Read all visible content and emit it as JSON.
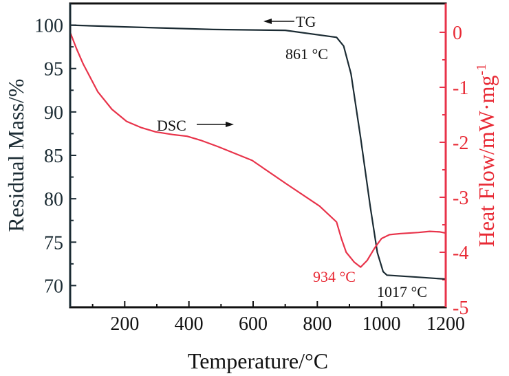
{
  "chart_data": {
    "type": "line",
    "title": "",
    "xlabel": "Temperature/°C",
    "ylabel": "Residual Mass/%",
    "y2label_main": "Heat Flow/mW·mg",
    "y2label_sup": "-1",
    "xlim": [
      30,
      1200
    ],
    "ylim": [
      67.5,
      102.5
    ],
    "y2lim": [
      -5,
      0.525
    ],
    "xticks": [
      200,
      400,
      600,
      800,
      1000,
      1200
    ],
    "yticks": [
      70,
      75,
      80,
      85,
      90,
      95,
      100
    ],
    "y2ticks": [
      0,
      -1,
      -2,
      -3,
      -4,
      -5
    ],
    "grid": false,
    "colors": {
      "tg": "#1b2b33",
      "dsc": "#e8334a",
      "left_axis": "#1b2b33",
      "right_axis": "#e8334a",
      "red_text": "#e82a35"
    },
    "series": [
      {
        "name": "TG",
        "axis": "left",
        "x": [
          33,
          200,
          475,
          700,
          860,
          882,
          905,
          935,
          965,
          987,
          1005,
          1017,
          1100,
          1200
        ],
        "y": [
          100,
          99.8,
          99.5,
          99.4,
          98.6,
          97.6,
          94.4,
          87.0,
          79.1,
          73.8,
          71.6,
          71.2,
          71.0,
          70.75
        ]
      },
      {
        "name": "DSC",
        "axis": "right",
        "x": [
          30,
          50,
          71,
          116,
          160,
          206,
          250,
          296,
          350,
          394,
          440,
          491,
          597,
          702,
          807,
          860,
          875,
          890,
          915,
          935,
          955,
          980,
          1000,
          1025,
          1060,
          1115,
          1150,
          1182,
          1200
        ],
        "y": [
          0.0,
          -0.3,
          -0.58,
          -1.08,
          -1.4,
          -1.62,
          -1.73,
          -1.81,
          -1.86,
          -1.89,
          -1.97,
          -2.08,
          -2.33,
          -2.75,
          -3.16,
          -3.45,
          -3.75,
          -4.0,
          -4.18,
          -4.27,
          -4.15,
          -3.91,
          -3.75,
          -3.68,
          -3.66,
          -3.64,
          -3.62,
          -3.63,
          -3.65
        ]
      }
    ],
    "annotations": {
      "tg_label": "TG",
      "dsc_label": "DSC",
      "onset": "861 °C",
      "dsc_peak": "934 °C",
      "end": "1017 °C"
    }
  }
}
